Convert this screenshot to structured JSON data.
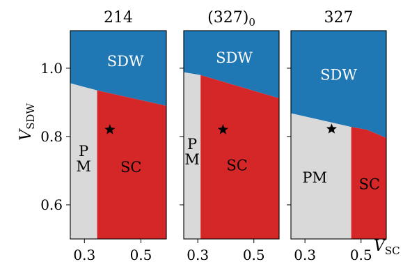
{
  "figure": {
    "ylabel_main": "V",
    "ylabel_sub": "SDW",
    "xlabel_main": "V",
    "xlabel_sub": "SC"
  },
  "colors": {
    "SDW": "#1f77b4",
    "SC": "#d62728",
    "PM": "#d9d9d9",
    "star": "#000000"
  },
  "chart_data": [
    {
      "type": "area",
      "title": "214",
      "title_sub": "",
      "xlim": [
        0.25,
        0.59
      ],
      "ylim": [
        0.5,
        1.11
      ],
      "xticks": [
        0.3,
        0.5
      ],
      "xtick_labels": [
        "0.3",
        "0.5"
      ],
      "yticks": [
        0.6,
        0.8,
        1.0
      ],
      "ytick_labels": [
        "0.6",
        "0.8",
        "1.0"
      ],
      "show_yticklabels": true,
      "pm_sc_boundary_x": 0.345,
      "sdw_boundary": [
        [
          0.25,
          0.956
        ],
        [
          0.345,
          0.935
        ],
        [
          0.59,
          0.89
        ]
      ],
      "star": {
        "x": 0.39,
        "y": 0.82
      },
      "regions": [
        {
          "label": "SDW",
          "x": 0.445,
          "y": 1.02
        },
        {
          "label": "P\nM",
          "x": 0.297,
          "y": 0.735
        },
        {
          "label": "SC",
          "x": 0.465,
          "y": 0.71
        }
      ]
    },
    {
      "type": "area",
      "title": "(327)",
      "title_sub": "0",
      "xlim": [
        0.25,
        0.59
      ],
      "ylim": [
        0.5,
        1.11
      ],
      "xticks": [
        0.3,
        0.5
      ],
      "xtick_labels": [
        "0.3",
        "0.5"
      ],
      "yticks": [
        0.6,
        0.8,
        1.0
      ],
      "ytick_labels": [
        "0.6",
        "0.8",
        "1.0"
      ],
      "show_yticklabels": false,
      "pm_sc_boundary_x": 0.31,
      "sdw_boundary": [
        [
          0.25,
          0.988
        ],
        [
          0.31,
          0.98
        ],
        [
          0.59,
          0.912
        ]
      ],
      "star": {
        "x": 0.39,
        "y": 0.82
      },
      "regions": [
        {
          "label": "SDW",
          "x": 0.43,
          "y": 1.03
        },
        {
          "label": "P\nM",
          "x": 0.28,
          "y": 0.755
        },
        {
          "label": "SC",
          "x": 0.44,
          "y": 0.715
        }
      ]
    },
    {
      "type": "area",
      "title": "327",
      "title_sub": "",
      "xlim": [
        0.25,
        0.59
      ],
      "ylim": [
        0.5,
        1.11
      ],
      "xticks": [
        0.3,
        0.5
      ],
      "xtick_labels": [
        "0.3",
        "0.5"
      ],
      "yticks": [
        0.6,
        0.8,
        1.0
      ],
      "ytick_labels": [
        "0.6",
        "0.8",
        "1.0"
      ],
      "show_yticklabels": false,
      "pm_sc_boundary_x": 0.465,
      "sdw_boundary": [
        [
          0.25,
          0.868
        ],
        [
          0.465,
          0.828
        ],
        [
          0.52,
          0.82
        ],
        [
          0.59,
          0.796
        ]
      ],
      "star": {
        "x": 0.395,
        "y": 0.822
      },
      "regions": [
        {
          "label": "SDW",
          "x": 0.42,
          "y": 0.98
        },
        {
          "label": "PM",
          "x": 0.335,
          "y": 0.68
        },
        {
          "label": "SC",
          "x": 0.53,
          "y": 0.66
        }
      ]
    }
  ]
}
